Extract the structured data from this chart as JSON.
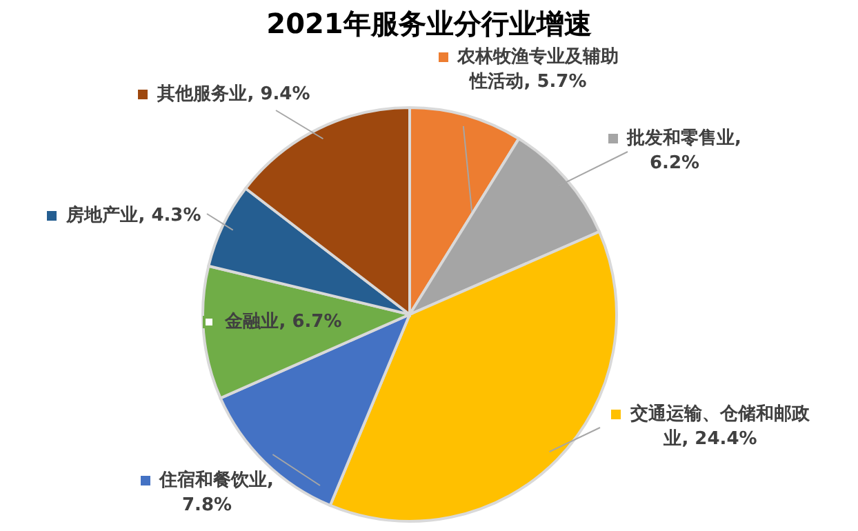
{
  "chart_data": {
    "type": "pie",
    "title": "2021年服务业分行业增速",
    "categories": [
      "农林牧渔专业及辅助性活动",
      "批发和零售业",
      "交通运输、仓储和邮政业",
      "住宿和餐饮业",
      "金融业",
      "房地产业",
      "其他服务业"
    ],
    "values": [
      5.7,
      6.2,
      24.4,
      7.8,
      6.7,
      4.3,
      9.4
    ],
    "value_labels": [
      ", 5.7%",
      ", 6.2%",
      ", 24.4%",
      ", 7.8%",
      ", 6.7%",
      ", 4.3%",
      ", 9.4%"
    ],
    "legend": "right",
    "colors": [
      "#ed7d31",
      "#a5a5a5",
      "#ffc000",
      "#4472c4",
      "#70ad47",
      "#255e91",
      "#9e480e"
    ]
  }
}
